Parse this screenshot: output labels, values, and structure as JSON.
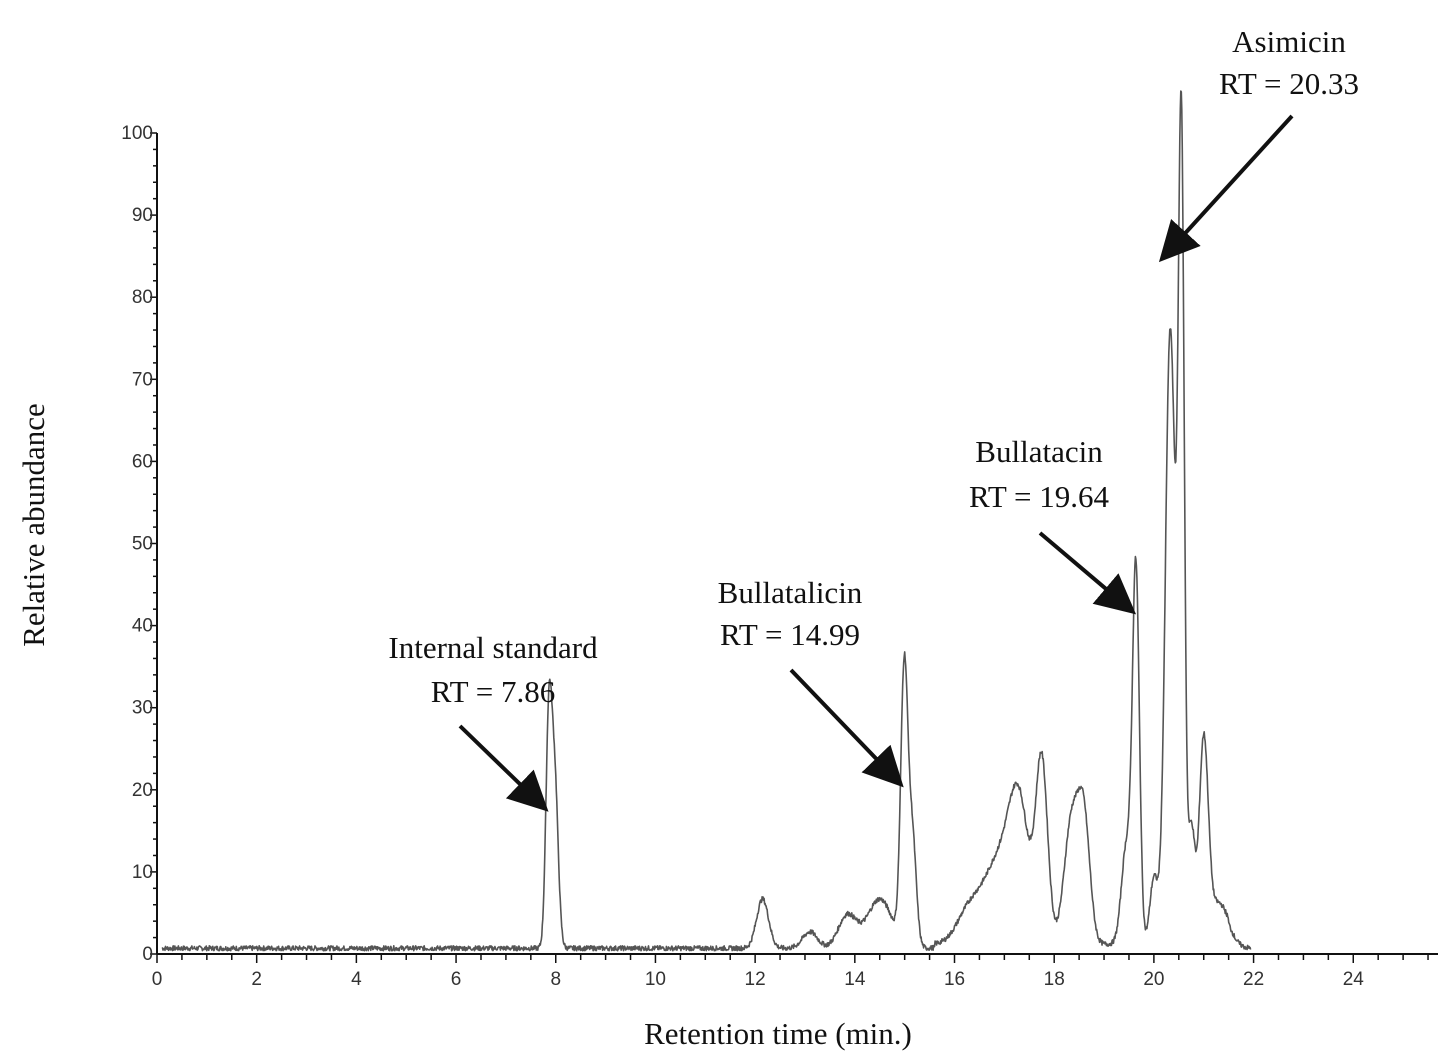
{
  "chart_data": {
    "type": "line",
    "xlabel": "Retention time (min.)",
    "ylabel": "Relative abundance",
    "xlim": [
      0,
      25.7
    ],
    "ylim": [
      0,
      100
    ],
    "x_ticks": [
      0,
      2,
      4,
      6,
      8,
      10,
      12,
      14,
      16,
      18,
      20,
      22,
      24
    ],
    "y_ticks": [
      0,
      10,
      20,
      30,
      40,
      50,
      60,
      70,
      80,
      90,
      100
    ],
    "grid": false,
    "baseline": 0.7,
    "series": [
      {
        "peaks": [
          {
            "rt": 7.86,
            "height": 27,
            "width": 0.06
          },
          {
            "rt": 7.98,
            "height": 20,
            "width": 0.07
          },
          {
            "rt": 12.15,
            "height": 6,
            "width": 0.12
          },
          {
            "rt": 13.1,
            "height": 2,
            "width": 0.15
          },
          {
            "rt": 13.85,
            "height": 4,
            "width": 0.18
          },
          {
            "rt": 14.5,
            "height": 6,
            "width": 0.25
          },
          {
            "rt": 14.99,
            "height": 33,
            "width": 0.07
          },
          {
            "rt": 15.15,
            "height": 14,
            "width": 0.08
          },
          {
            "rt": 16.3,
            "height": 4,
            "width": 0.25
          },
          {
            "rt": 16.9,
            "height": 10,
            "width": 0.3
          },
          {
            "rt": 17.3,
            "height": 15,
            "width": 0.2
          },
          {
            "rt": 17.75,
            "height": 22,
            "width": 0.12
          },
          {
            "rt": 18.35,
            "height": 15,
            "width": 0.15
          },
          {
            "rt": 18.6,
            "height": 14,
            "width": 0.12
          },
          {
            "rt": 19.64,
            "height": 45,
            "width": 0.07
          },
          {
            "rt": 19.45,
            "height": 12,
            "width": 0.1
          },
          {
            "rt": 20.0,
            "height": 8,
            "width": 0.08
          },
          {
            "rt": 20.33,
            "height": 75,
            "width": 0.1
          },
          {
            "rt": 20.55,
            "height": 97,
            "width": 0.06
          },
          {
            "rt": 20.75,
            "height": 14,
            "width": 0.07
          },
          {
            "rt": 21.0,
            "height": 24,
            "width": 0.09
          },
          {
            "rt": 21.3,
            "height": 5,
            "width": 0.2
          }
        ]
      }
    ],
    "annotations": [
      {
        "line1": "Internal standard",
        "line2": "RT = 7.86",
        "target_x": 7.86,
        "target_y": 18
      },
      {
        "line1": "Bullatalicin",
        "line2": "RT = 14.99",
        "target_x": 14.99,
        "target_y": 21
      },
      {
        "line1": "Bullatacin",
        "line2": "RT = 19.64",
        "target_x": 19.64,
        "target_y": 42
      },
      {
        "line1": "Asimicin",
        "line2": "RT = 20.33",
        "target_x": 20.33,
        "target_y": 85
      }
    ]
  },
  "colors": {
    "trace": "#555555",
    "axis": "#111111",
    "arrow": "#111111"
  }
}
